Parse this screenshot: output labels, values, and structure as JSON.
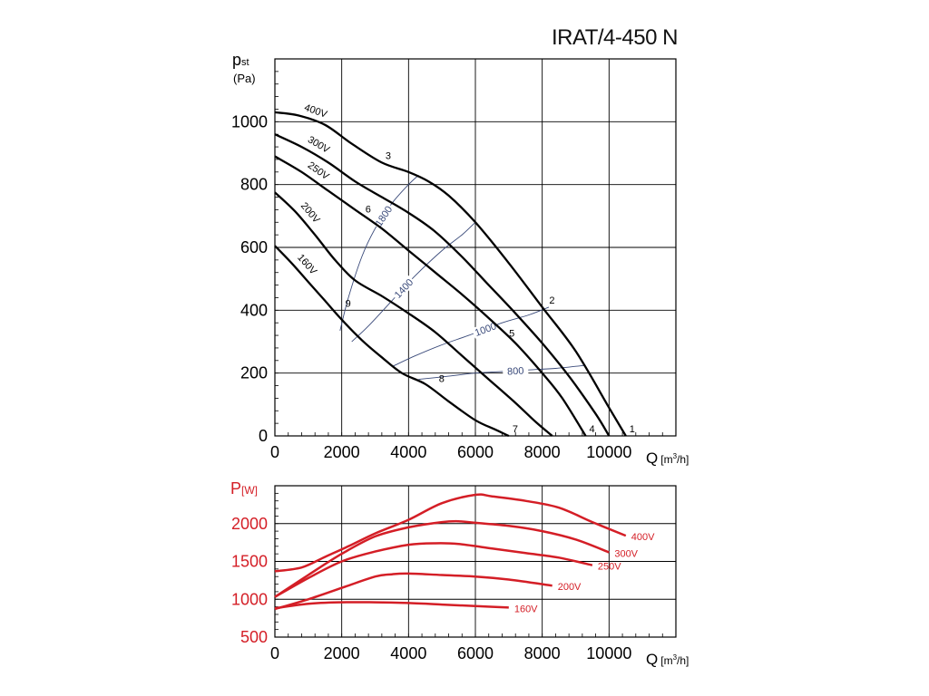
{
  "model": "IRAT/4-450 N",
  "chart_data": [
    {
      "type": "line",
      "title": "IRAT/4-450 N",
      "ylabel_main": "p",
      "ylabel_sub": "st",
      "ylabel_unit": "(Pa)",
      "xlabel": "Q",
      "xlabel_unit_pre": "[m",
      "xlabel_unit_sup": "3",
      "xlabel_unit_post": "/h]",
      "xlim": [
        0,
        12000
      ],
      "ylim": [
        0,
        1200
      ],
      "x_ticks": [
        0,
        2000,
        4000,
        6000,
        8000,
        10000
      ],
      "x_tick_labels": [
        "0",
        "2000",
        "4000",
        "6000",
        "8000",
        "10000"
      ],
      "y_ticks": [
        0,
        200,
        400,
        600,
        800,
        1000
      ],
      "y_tick_labels": [
        "0",
        "200",
        "400",
        "600",
        "800",
        "1000"
      ],
      "grid": true,
      "series": [
        {
          "name": "400V",
          "x": [
            0,
            700,
            1500,
            2300,
            3200,
            4000,
            4600,
            5200,
            6000,
            7000,
            8000,
            9000,
            10000,
            10500
          ],
          "y": [
            1030,
            1020,
            990,
            930,
            870,
            840,
            810,
            765,
            680,
            550,
            410,
            270,
            90,
            0
          ]
        },
        {
          "name": "300V",
          "x": [
            0,
            800,
            1600,
            2400,
            3200,
            4000,
            4800,
            5600,
            6400,
            7200,
            8000,
            8800,
            9600,
            10000
          ],
          "y": [
            960,
            920,
            870,
            810,
            760,
            710,
            650,
            570,
            480,
            390,
            295,
            190,
            70,
            0
          ]
        },
        {
          "name": "250V",
          "x": [
            0,
            800,
            1600,
            2400,
            3200,
            4000,
            4800,
            5600,
            6400,
            7200,
            8000,
            8600,
            9300
          ],
          "y": [
            890,
            840,
            780,
            720,
            660,
            590,
            520,
            450,
            375,
            295,
            200,
            120,
            0
          ]
        },
        {
          "name": "200V",
          "x": [
            0,
            600,
            1200,
            1800,
            2400,
            3200,
            4000,
            4800,
            5600,
            6400,
            7200,
            7800,
            8300
          ],
          "y": [
            775,
            715,
            640,
            560,
            495,
            445,
            390,
            330,
            255,
            180,
            105,
            45,
            0
          ]
        },
        {
          "name": "160V",
          "x": [
            0,
            500,
            1000,
            1500,
            2000,
            2600,
            3200,
            3800,
            4500,
            5200,
            6000,
            6600,
            7000
          ],
          "y": [
            605,
            550,
            490,
            430,
            370,
            305,
            250,
            200,
            165,
            110,
            50,
            20,
            0
          ]
        }
      ],
      "rpm_curves": [
        {
          "name": "1800",
          "x": [
            1950,
            2200,
            2600,
            3000,
            3500,
            4000,
            4300
          ],
          "y": [
            335,
            440,
            570,
            660,
            740,
            800,
            830
          ]
        },
        {
          "name": "1400",
          "x": [
            2300,
            2800,
            3500,
            4200,
            5000,
            5600,
            6000
          ],
          "y": [
            300,
            350,
            430,
            510,
            590,
            640,
            680
          ]
        },
        {
          "name": "1000",
          "x": [
            3500,
            4200,
            5000,
            5800,
            6800,
            7600,
            8200
          ],
          "y": [
            220,
            255,
            290,
            320,
            360,
            385,
            410
          ]
        },
        {
          "name": "800",
          "x": [
            4300,
            5200,
            6000,
            6800,
            7600,
            8400,
            9300
          ],
          "y": [
            180,
            190,
            200,
            205,
            210,
            215,
            225
          ]
        }
      ],
      "operating_points": [
        {
          "label": "1",
          "x": 10500,
          "y": 0
        },
        {
          "label": "2",
          "x": 8100,
          "y": 410
        },
        {
          "label": "3",
          "x": 3200,
          "y": 870
        },
        {
          "label": "4",
          "x": 9300,
          "y": 0
        },
        {
          "label": "5",
          "x": 6900,
          "y": 305
        },
        {
          "label": "6",
          "x": 2600,
          "y": 700
        },
        {
          "label": "7",
          "x": 7000,
          "y": 0
        },
        {
          "label": "8",
          "x": 4800,
          "y": 160
        },
        {
          "label": "9",
          "x": 2000,
          "y": 400
        }
      ]
    },
    {
      "type": "line",
      "ylabel": "P",
      "ylabel_unit": "[W]",
      "xlabel": "Q",
      "xlabel_unit_pre": "[m",
      "xlabel_unit_sup": "3",
      "xlabel_unit_post": "/h]",
      "xlim": [
        0,
        12000
      ],
      "ylim": [
        500,
        2500
      ],
      "x_ticks": [
        0,
        2000,
        4000,
        6000,
        8000,
        10000
      ],
      "x_tick_labels": [
        "0",
        "2000",
        "4000",
        "6000",
        "8000",
        "10000"
      ],
      "y_ticks": [
        500,
        1000,
        1500,
        2000
      ],
      "y_tick_labels": [
        "500",
        "1000",
        "1500",
        "2000"
      ],
      "grid": true,
      "color": "#d41e26",
      "series": [
        {
          "name": "400V",
          "x": [
            0,
            800,
            1500,
            2200,
            3000,
            4000,
            5000,
            6000,
            6500,
            7500,
            8500,
            9500,
            10500
          ],
          "y": [
            1370,
            1420,
            1560,
            1700,
            1870,
            2050,
            2270,
            2380,
            2360,
            2300,
            2210,
            2020,
            1840
          ]
        },
        {
          "name": "300V",
          "x": [
            0,
            1000,
            2000,
            3000,
            4000,
            5000,
            5500,
            6000,
            7000,
            8000,
            9000,
            10000
          ],
          "y": [
            1030,
            1320,
            1600,
            1830,
            1950,
            2020,
            2030,
            2010,
            1970,
            1900,
            1790,
            1620
          ]
        },
        {
          "name": "250V",
          "x": [
            0,
            1000,
            2000,
            3000,
            4000,
            4800,
            5500,
            6500,
            7500,
            8500,
            9500
          ],
          "y": [
            1030,
            1280,
            1500,
            1630,
            1720,
            1740,
            1730,
            1670,
            1610,
            1550,
            1450
          ]
        },
        {
          "name": "200V",
          "x": [
            0,
            1000,
            2000,
            3000,
            3500,
            4000,
            5000,
            6000,
            7000,
            8300
          ],
          "y": [
            870,
            1000,
            1150,
            1300,
            1330,
            1340,
            1320,
            1300,
            1260,
            1180
          ]
        },
        {
          "name": "160V",
          "x": [
            0,
            1000,
            2000,
            3000,
            4000,
            5000,
            6000,
            7000
          ],
          "y": [
            880,
            940,
            960,
            960,
            950,
            930,
            910,
            890
          ]
        }
      ]
    }
  ]
}
